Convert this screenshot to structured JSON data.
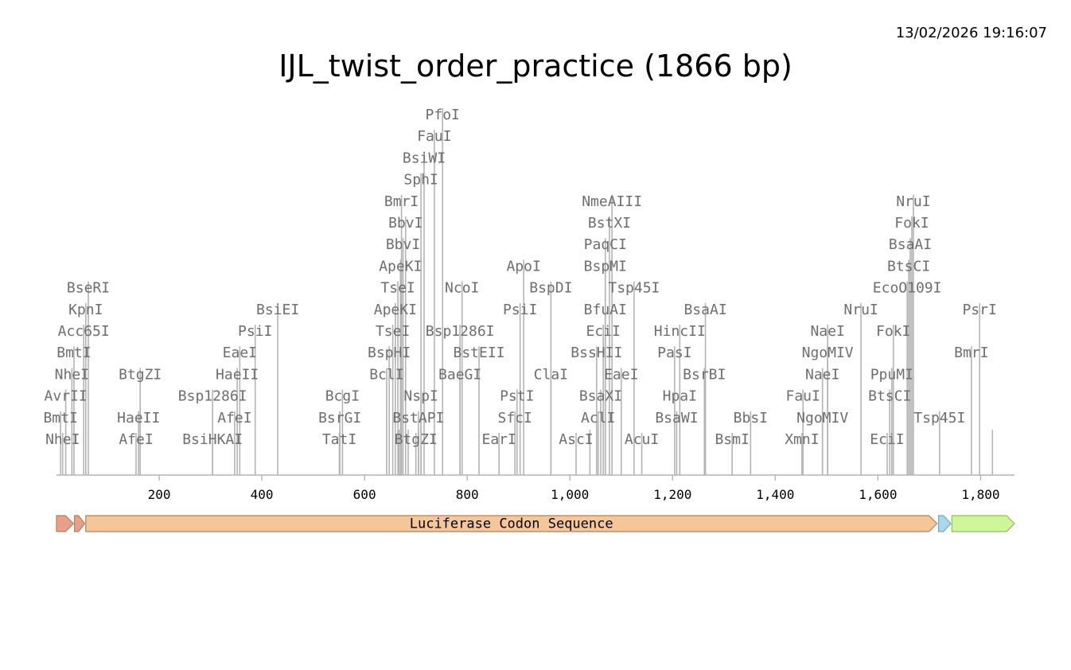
{
  "timestamp": "13/02/2026 19:16:07",
  "title": "IJL_twist_order_practice (1866 bp)",
  "axis": {
    "min": 0,
    "max": 1866,
    "ticks": [
      200,
      400,
      600,
      800,
      1000,
      1200,
      1400,
      1600,
      1800
    ],
    "tick_labels": [
      "200",
      "400",
      "600",
      "800",
      "1,000",
      "1,200",
      "1,400",
      "1,600",
      "1,800"
    ]
  },
  "colors": {
    "cut_line": "#b4b4b4",
    "enzyme_label": "#6e6e6e",
    "feature_1": "#e8a08a",
    "feature_main": "#f5c697",
    "feature_light_blue": "#a9d7ec",
    "feature_green": "#cdf79a"
  },
  "enzymes": [
    {
      "name": "NheI",
      "pos": 12,
      "row": 1
    },
    {
      "name": "BmtI",
      "pos": 8,
      "row": 2
    },
    {
      "name": "AvrII",
      "pos": 18,
      "row": 3
    },
    {
      "name": "NheI",
      "pos": 30,
      "row": 4
    },
    {
      "name": "BmtI",
      "pos": 34,
      "row": 5
    },
    {
      "name": "Acc65I",
      "pos": 53,
      "row": 6
    },
    {
      "name": "KpnI",
      "pos": 57,
      "row": 7
    },
    {
      "name": "BseRI",
      "pos": 62,
      "row": 8
    },
    {
      "name": "AfeI",
      "pos": 155,
      "row": 1
    },
    {
      "name": "HaeII",
      "pos": 160,
      "row": 2
    },
    {
      "name": "BtgZI",
      "pos": 163,
      "row": 4
    },
    {
      "name": "BsiHKAI",
      "pos": 304,
      "row": 1
    },
    {
      "name": "Bsp1286I",
      "pos": 304,
      "row": 3
    },
    {
      "name": "AfeI",
      "pos": 347,
      "row": 2
    },
    {
      "name": "HaeII",
      "pos": 352,
      "row": 4
    },
    {
      "name": "EaeI",
      "pos": 357,
      "row": 5
    },
    {
      "name": "PsiI",
      "pos": 387,
      "row": 6
    },
    {
      "name": "BsiEI",
      "pos": 431,
      "row": 7
    },
    {
      "name": "TatI",
      "pos": 551,
      "row": 1
    },
    {
      "name": "BsrGI",
      "pos": 552,
      "row": 2
    },
    {
      "name": "BcgI",
      "pos": 557,
      "row": 3
    },
    {
      "name": "BclI",
      "pos": 643,
      "row": 4
    },
    {
      "name": "BspHI",
      "pos": 648,
      "row": 5
    },
    {
      "name": "TseI",
      "pos": 655,
      "row": 6
    },
    {
      "name": "ApeKI",
      "pos": 660,
      "row": 7
    },
    {
      "name": "TseI",
      "pos": 665,
      "row": 8
    },
    {
      "name": "ApeKI",
      "pos": 670,
      "row": 9
    },
    {
      "name": "BbvI",
      "pos": 675,
      "row": 10
    },
    {
      "name": "BbvI",
      "pos": 680,
      "row": 11
    },
    {
      "name": "BmrI",
      "pos": 672,
      "row": 12
    },
    {
      "name": "BtgZI",
      "pos": 700,
      "row": 1
    },
    {
      "name": "BstAPI",
      "pos": 705,
      "row": 2
    },
    {
      "name": "NspI",
      "pos": 710,
      "row": 3
    },
    {
      "name": "SphI",
      "pos": 710,
      "row": 13
    },
    {
      "name": "BsiWI",
      "pos": 716,
      "row": 14
    },
    {
      "name": "FauI",
      "pos": 736,
      "row": 15
    },
    {
      "name": "PfoI",
      "pos": 752,
      "row": 16
    },
    {
      "name": "BaeGI",
      "pos": 786,
      "row": 4
    },
    {
      "name": "Bsp1286I",
      "pos": 786,
      "row": 6
    },
    {
      "name": "NcoI",
      "pos": 790,
      "row": 8
    },
    {
      "name": "BstEII",
      "pos": 823,
      "row": 5
    },
    {
      "name": "EarI",
      "pos": 862,
      "row": 1
    },
    {
      "name": "SfcI",
      "pos": 893,
      "row": 2
    },
    {
      "name": "PstI",
      "pos": 897,
      "row": 3
    },
    {
      "name": "PsiI",
      "pos": 903,
      "row": 7
    },
    {
      "name": "ApoI",
      "pos": 910,
      "row": 9
    },
    {
      "name": "ClaI",
      "pos": 963,
      "row": 4
    },
    {
      "name": "BspDI",
      "pos": 963,
      "row": 8
    },
    {
      "name": "AscI",
      "pos": 1012,
      "row": 1
    },
    {
      "name": "BssHII",
      "pos": 1052,
      "row": 5
    },
    {
      "name": "AclI",
      "pos": 1055,
      "row": 2
    },
    {
      "name": "BsaXI",
      "pos": 1060,
      "row": 3
    },
    {
      "name": "EciI",
      "pos": 1065,
      "row": 6
    },
    {
      "name": "BfuAI",
      "pos": 1069,
      "row": 7
    },
    {
      "name": "BspMI",
      "pos": 1069,
      "row": 9
    },
    {
      "name": "PaqCI",
      "pos": 1069,
      "row": 10
    },
    {
      "name": "BstXI",
      "pos": 1077,
      "row": 11
    },
    {
      "name": "NmeAIII",
      "pos": 1082,
      "row": 12
    },
    {
      "name": "EaeI",
      "pos": 1100,
      "row": 4
    },
    {
      "name": "Tsp45I",
      "pos": 1125,
      "row": 8
    },
    {
      "name": "AcuI",
      "pos": 1140,
      "row": 1
    },
    {
      "name": "BsaWI",
      "pos": 1208,
      "row": 2
    },
    {
      "name": "PasI",
      "pos": 1204,
      "row": 5
    },
    {
      "name": "HpaI",
      "pos": 1214,
      "row": 3
    },
    {
      "name": "HincII",
      "pos": 1214,
      "row": 6
    },
    {
      "name": "BsrBI",
      "pos": 1262,
      "row": 4
    },
    {
      "name": "BsaAI",
      "pos": 1264,
      "row": 7
    },
    {
      "name": "BsmI",
      "pos": 1316,
      "row": 1
    },
    {
      "name": "BbsI",
      "pos": 1352,
      "row": 2
    },
    {
      "name": "XmnI",
      "pos": 1452,
      "row": 1
    },
    {
      "name": "FauI",
      "pos": 1454,
      "row": 3
    },
    {
      "name": "NaeI",
      "pos": 1492,
      "row": 4
    },
    {
      "name": "NgoMIV",
      "pos": 1492,
      "row": 2
    },
    {
      "name": "NgoMIV",
      "pos": 1502,
      "row": 5
    },
    {
      "name": "NaeI",
      "pos": 1502,
      "row": 6
    },
    {
      "name": "NruI",
      "pos": 1567,
      "row": 7
    },
    {
      "name": "EciI",
      "pos": 1618,
      "row": 1
    },
    {
      "name": "BtsCI",
      "pos": 1623,
      "row": 3
    },
    {
      "name": "PpuMI",
      "pos": 1627,
      "row": 4
    },
    {
      "name": "FokI",
      "pos": 1630,
      "row": 6
    },
    {
      "name": "EcoO109I",
      "pos": 1657,
      "row": 8
    },
    {
      "name": "BtsCI",
      "pos": 1660,
      "row": 9
    },
    {
      "name": "BsaAI",
      "pos": 1663,
      "row": 10
    },
    {
      "name": "FokI",
      "pos": 1666,
      "row": 11
    },
    {
      "name": "NruI",
      "pos": 1669,
      "row": 12
    },
    {
      "name": "Tsp45I",
      "pos": 1720,
      "row": 2
    },
    {
      "name": "BmrI",
      "pos": 1782,
      "row": 5
    },
    {
      "name": "PsrI",
      "pos": 1798,
      "row": 7
    }
  ],
  "extra_cuts": [
    {
      "pos": 1823,
      "row": 0
    },
    {
      "pos": 705,
      "row": 0
    },
    {
      "pos": 667,
      "row": 0
    },
    {
      "pos": 685,
      "row": 0
    },
    {
      "pos": 1039,
      "row": 0
    }
  ],
  "features": [
    {
      "label": "",
      "start": 0,
      "end": 33,
      "color": "#e8a08a"
    },
    {
      "label": "",
      "start": 35,
      "end": 55,
      "color": "#e8a08a"
    },
    {
      "label": "Luciferase Codon Sequence",
      "start": 57,
      "end": 1715,
      "color": "#f5c697"
    },
    {
      "label": "",
      "start": 1718,
      "end": 1742,
      "color": "#a9d7ec"
    },
    {
      "label": "",
      "start": 1744,
      "end": 1866,
      "color": "#cdf79a"
    }
  ]
}
